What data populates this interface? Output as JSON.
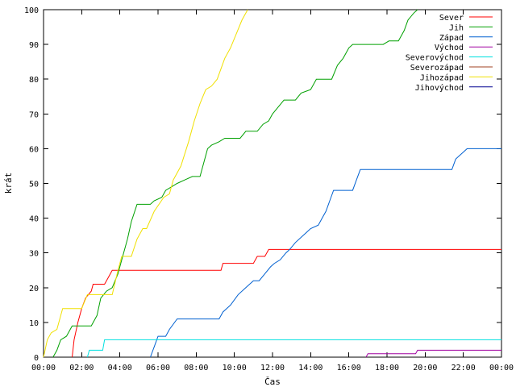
{
  "chart_data": {
    "type": "line",
    "title": "",
    "xlabel": "Čas",
    "ylabel": "krát",
    "xlim": [
      0,
      24
    ],
    "ylim": [
      0,
      100
    ],
    "x_ticks": [
      {
        "v": 0,
        "label": "00:00"
      },
      {
        "v": 2,
        "label": "02:00"
      },
      {
        "v": 4,
        "label": "04:00"
      },
      {
        "v": 6,
        "label": "06:00"
      },
      {
        "v": 8,
        "label": "08:00"
      },
      {
        "v": 10,
        "label": "10:00"
      },
      {
        "v": 12,
        "label": "12:00"
      },
      {
        "v": 14,
        "label": "14:00"
      },
      {
        "v": 16,
        "label": "16:00"
      },
      {
        "v": 18,
        "label": "18:00"
      },
      {
        "v": 20,
        "label": "20:00"
      },
      {
        "v": 22,
        "label": "22:00"
      },
      {
        "v": 24,
        "label": "00:00"
      }
    ],
    "y_ticks": [
      {
        "v": 0,
        "label": "0"
      },
      {
        "v": 10,
        "label": "10"
      },
      {
        "v": 20,
        "label": "20"
      },
      {
        "v": 30,
        "label": "30"
      },
      {
        "v": 40,
        "label": "40"
      },
      {
        "v": 50,
        "label": "50"
      },
      {
        "v": 60,
        "label": "60"
      },
      {
        "v": 70,
        "label": "70"
      },
      {
        "v": 80,
        "label": "80"
      },
      {
        "v": 90,
        "label": "90"
      },
      {
        "v": 100,
        "label": "100"
      }
    ],
    "grid": false,
    "legend_position": "top-right",
    "series": [
      {
        "name": "Sever",
        "color": "#ff0000",
        "points": [
          [
            1.5,
            0
          ],
          [
            1.6,
            5
          ],
          [
            1.8,
            10
          ],
          [
            2.0,
            14
          ],
          [
            2.2,
            17
          ],
          [
            2.5,
            19
          ],
          [
            2.6,
            21
          ],
          [
            3.2,
            21
          ],
          [
            3.4,
            23
          ],
          [
            3.6,
            25
          ],
          [
            9.3,
            25
          ],
          [
            9.4,
            27
          ],
          [
            11.0,
            27
          ],
          [
            11.2,
            29
          ],
          [
            11.6,
            29
          ],
          [
            11.8,
            31
          ],
          [
            24,
            31
          ]
        ]
      },
      {
        "name": "Jih",
        "color": "#00a000",
        "points": [
          [
            0.5,
            0
          ],
          [
            0.7,
            2
          ],
          [
            0.9,
            5
          ],
          [
            1.2,
            6
          ],
          [
            1.5,
            9
          ],
          [
            2.5,
            9
          ],
          [
            2.8,
            12
          ],
          [
            3.0,
            17
          ],
          [
            3.3,
            19
          ],
          [
            3.6,
            20
          ],
          [
            3.9,
            24
          ],
          [
            4.1,
            28
          ],
          [
            4.4,
            34
          ],
          [
            4.6,
            39
          ],
          [
            4.9,
            44
          ],
          [
            5.6,
            44
          ],
          [
            5.8,
            45
          ],
          [
            6.2,
            46
          ],
          [
            6.4,
            48
          ],
          [
            6.7,
            49
          ],
          [
            7.0,
            50
          ],
          [
            7.4,
            51
          ],
          [
            7.8,
            52
          ],
          [
            8.2,
            52
          ],
          [
            8.4,
            56
          ],
          [
            8.6,
            60
          ],
          [
            8.8,
            61
          ],
          [
            9.2,
            62
          ],
          [
            9.5,
            63
          ],
          [
            10.3,
            63
          ],
          [
            10.6,
            65
          ],
          [
            11.2,
            65
          ],
          [
            11.5,
            67
          ],
          [
            11.8,
            68
          ],
          [
            12.0,
            70
          ],
          [
            12.3,
            72
          ],
          [
            12.6,
            74
          ],
          [
            13.2,
            74
          ],
          [
            13.5,
            76
          ],
          [
            14.0,
            77
          ],
          [
            14.3,
            80
          ],
          [
            15.1,
            80
          ],
          [
            15.4,
            84
          ],
          [
            15.7,
            86
          ],
          [
            16.0,
            89
          ],
          [
            16.2,
            90
          ],
          [
            17.8,
            90
          ],
          [
            18.1,
            91
          ],
          [
            18.6,
            91
          ],
          [
            18.9,
            94
          ],
          [
            19.1,
            97
          ],
          [
            19.4,
            99
          ],
          [
            19.6,
            100
          ]
        ]
      },
      {
        "name": "Západ",
        "color": "#0060d0",
        "points": [
          [
            5.6,
            0
          ],
          [
            5.8,
            3
          ],
          [
            6.0,
            6
          ],
          [
            6.4,
            6
          ],
          [
            6.6,
            8
          ],
          [
            7.0,
            11
          ],
          [
            9.2,
            11
          ],
          [
            9.4,
            13
          ],
          [
            9.8,
            15
          ],
          [
            10.2,
            18
          ],
          [
            10.6,
            20
          ],
          [
            11.0,
            22
          ],
          [
            11.3,
            22
          ],
          [
            11.6,
            24
          ],
          [
            11.9,
            26
          ],
          [
            12.1,
            27
          ],
          [
            12.4,
            28
          ],
          [
            12.7,
            30
          ],
          [
            12.9,
            31
          ],
          [
            13.2,
            33
          ],
          [
            13.6,
            35
          ],
          [
            14.0,
            37
          ],
          [
            14.4,
            38
          ],
          [
            14.6,
            40
          ],
          [
            14.8,
            42
          ],
          [
            15.0,
            45
          ],
          [
            15.2,
            48
          ],
          [
            16.2,
            48
          ],
          [
            16.4,
            51
          ],
          [
            16.6,
            54
          ],
          [
            21.4,
            54
          ],
          [
            21.6,
            57
          ],
          [
            21.8,
            58
          ],
          [
            22.2,
            60
          ],
          [
            24,
            60
          ]
        ]
      },
      {
        "name": "Východ",
        "color": "#a000a0",
        "points": [
          [
            16.9,
            0
          ],
          [
            17.0,
            1
          ],
          [
            19.5,
            1
          ],
          [
            19.6,
            2
          ],
          [
            24,
            2
          ]
        ]
      },
      {
        "name": "Severovýchod",
        "color": "#00e0e0",
        "points": [
          [
            2.3,
            0
          ],
          [
            2.4,
            2
          ],
          [
            3.1,
            2
          ],
          [
            3.2,
            5
          ],
          [
            24,
            5
          ]
        ]
      },
      {
        "name": "Severozápad",
        "color": "#a04020",
        "points": []
      },
      {
        "name": "Jihozápad",
        "color": "#f0e000",
        "points": [
          [
            0.0,
            0
          ],
          [
            0.2,
            5
          ],
          [
            0.4,
            7
          ],
          [
            0.7,
            8
          ],
          [
            1.0,
            14
          ],
          [
            2.0,
            14
          ],
          [
            2.3,
            18
          ],
          [
            3.6,
            18
          ],
          [
            3.9,
            25
          ],
          [
            4.1,
            29
          ],
          [
            4.6,
            29
          ],
          [
            4.9,
            34
          ],
          [
            5.2,
            37
          ],
          [
            5.4,
            37
          ],
          [
            5.8,
            42
          ],
          [
            6.3,
            46
          ],
          [
            6.6,
            47
          ],
          [
            6.8,
            51
          ],
          [
            7.2,
            55
          ],
          [
            7.6,
            62
          ],
          [
            7.9,
            68
          ],
          [
            8.2,
            73
          ],
          [
            8.5,
            77
          ],
          [
            8.8,
            78
          ],
          [
            9.1,
            80
          ],
          [
            9.5,
            86
          ],
          [
            9.8,
            89
          ],
          [
            10.1,
            93
          ],
          [
            10.4,
            97
          ],
          [
            10.7,
            100
          ]
        ]
      },
      {
        "name": "Jihovýchod",
        "color": "#000090",
        "points": []
      }
    ]
  }
}
